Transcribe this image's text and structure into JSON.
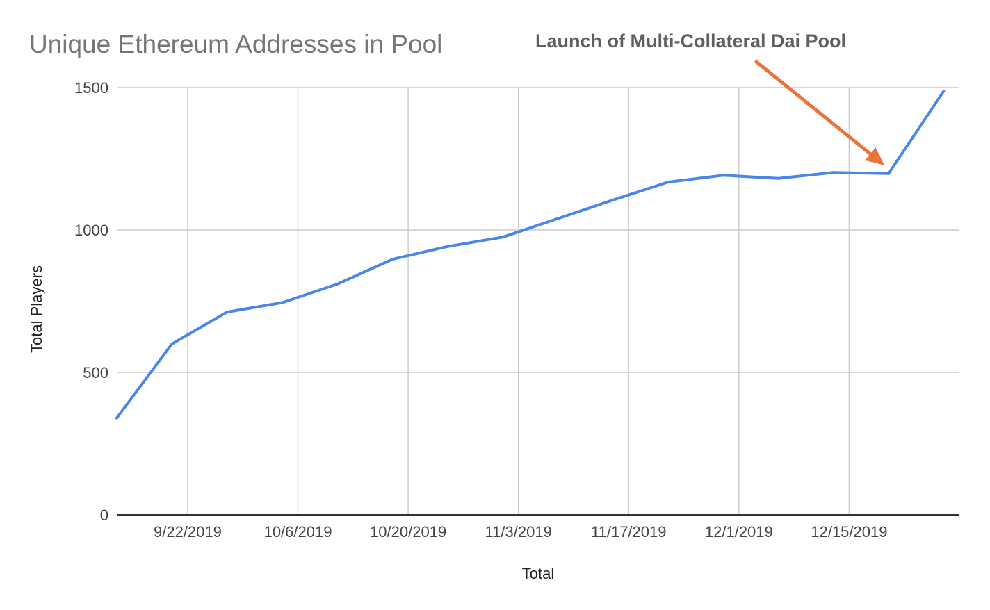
{
  "chart_data": {
    "type": "line",
    "title": "Unique Ethereum Addresses in Pool",
    "xlabel": "Total",
    "ylabel": "Total Players",
    "ylim": [
      0,
      1500
    ],
    "yticks": [
      0,
      500,
      1000,
      1500
    ],
    "xlim": [
      "2019-09-13",
      "2019-12-29"
    ],
    "xticks": [
      {
        "date": "2019-09-22",
        "label": "9/22/2019"
      },
      {
        "date": "2019-10-06",
        "label": "10/6/2019"
      },
      {
        "date": "2019-10-20",
        "label": "10/20/2019"
      },
      {
        "date": "2019-11-03",
        "label": "11/3/2019"
      },
      {
        "date": "2019-11-17",
        "label": "11/17/2019"
      },
      {
        "date": "2019-12-01",
        "label": "12/1/2019"
      },
      {
        "date": "2019-12-15",
        "label": "12/15/2019"
      }
    ],
    "grid": true,
    "series": [
      {
        "color": "#4a86e8",
        "points": [
          {
            "x": "2019-09-13",
            "y": 340
          },
          {
            "x": "2019-09-20",
            "y": 600
          },
          {
            "x": "2019-09-27",
            "y": 712
          },
          {
            "x": "2019-10-04",
            "y": 745
          },
          {
            "x": "2019-10-11",
            "y": 810
          },
          {
            "x": "2019-10-18",
            "y": 897
          },
          {
            "x": "2019-10-25",
            "y": 942
          },
          {
            "x": "2019-11-01",
            "y": 975
          },
          {
            "x": "2019-11-08",
            "y": 1040
          },
          {
            "x": "2019-11-15",
            "y": 1105
          },
          {
            "x": "2019-11-22",
            "y": 1168
          },
          {
            "x": "2019-11-29",
            "y": 1192
          },
          {
            "x": "2019-12-06",
            "y": 1181
          },
          {
            "x": "2019-12-13",
            "y": 1202
          },
          {
            "x": "2019-12-20",
            "y": 1198
          },
          {
            "x": "2019-12-27",
            "y": 1487
          }
        ]
      }
    ],
    "annotation": {
      "text": "Launch of Multi-Collateral Dai Pool",
      "color": "#e8743b"
    }
  }
}
